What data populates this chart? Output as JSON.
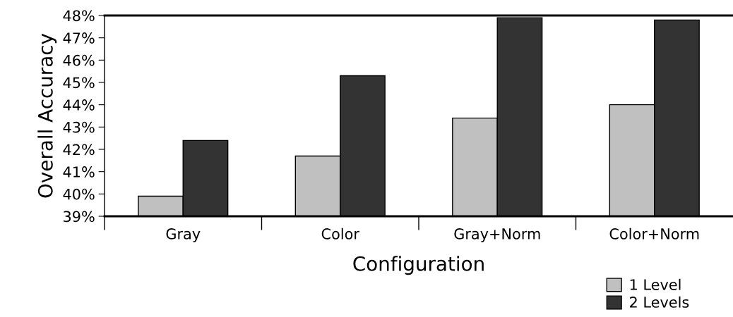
{
  "chart_data": {
    "type": "bar",
    "xlabel": "Configuration",
    "ylabel": "Overall Accuracy",
    "categories": [
      "Gray",
      "Color",
      "Gray+Norm",
      "Color+Norm"
    ],
    "series": [
      {
        "name": "1 Level",
        "color": "#c0c0c0",
        "values": [
          39.9,
          41.7,
          43.4,
          44.0
        ]
      },
      {
        "name": "2 Levels",
        "color": "#333333",
        "values": [
          42.4,
          45.3,
          47.9,
          47.8
        ]
      }
    ],
    "ylim": [
      39,
      48
    ],
    "yticks": [
      {
        "value": 39,
        "label": "39%"
      },
      {
        "value": 40,
        "label": "40%"
      },
      {
        "value": 41,
        "label": "41%"
      },
      {
        "value": 42,
        "label": "42%"
      },
      {
        "value": 43,
        "label": "43%"
      },
      {
        "value": 44,
        "label": "44%"
      },
      {
        "value": 45,
        "label": "45%"
      },
      {
        "value": 46,
        "label": "46%"
      },
      {
        "value": 47,
        "label": "47%"
      },
      {
        "value": 48,
        "label": "48%"
      }
    ],
    "grid": false,
    "legend": "bottom right"
  }
}
